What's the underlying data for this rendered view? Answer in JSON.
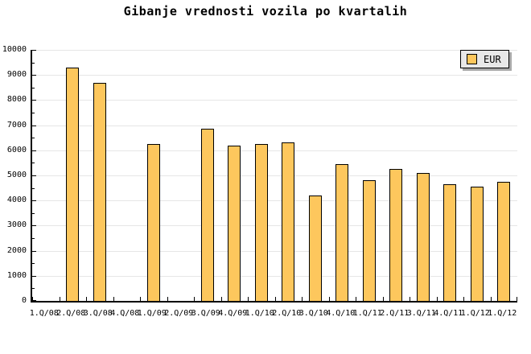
{
  "title": "Gibanje vrednosti vozila po kvartalih",
  "legend": {
    "label": "EUR"
  },
  "colors": {
    "bar_fill": "#fdc75d",
    "bar_border": "#000000",
    "gridline": "#e6e6e6",
    "axis": "#000000",
    "legend_bg": "#e8e8e8",
    "legend_shadow": "#a8a8a8",
    "background": "#ffffff"
  },
  "chart_data": {
    "type": "bar",
    "title": "Gibanje vrednosti vozila po kvartalih",
    "xlabel": "",
    "ylabel": "",
    "categories": [
      "1.Q/08",
      "2.Q/08",
      "3.Q/08",
      "4.Q/08",
      "1.Q/09",
      "2.Q/09",
      "3.Q/09",
      "4.Q/09",
      "1.Q/10",
      "2.Q/10",
      "3.Q/10",
      "4.Q/10",
      "1.Q/11",
      "2.Q/11",
      "3.Q/11",
      "4.Q/11",
      "1.Q/12",
      "1.Q/12"
    ],
    "values": [
      null,
      9300,
      8700,
      null,
      6250,
      null,
      6850,
      6200,
      6250,
      6300,
      4200,
      5450,
      4800,
      5250,
      5100,
      4650,
      4550,
      4750
    ],
    "series_name": "EUR",
    "ylim": [
      0,
      10000
    ],
    "ytick_step": 1000,
    "ytick_minor_step": 500,
    "ytick_labels": [
      "0",
      "1000",
      "2000",
      "3000",
      "4000",
      "5000",
      "6000",
      "7000",
      "8000",
      "9000",
      "10000"
    ],
    "grid": "horizontal",
    "legend_position": "top-right"
  }
}
